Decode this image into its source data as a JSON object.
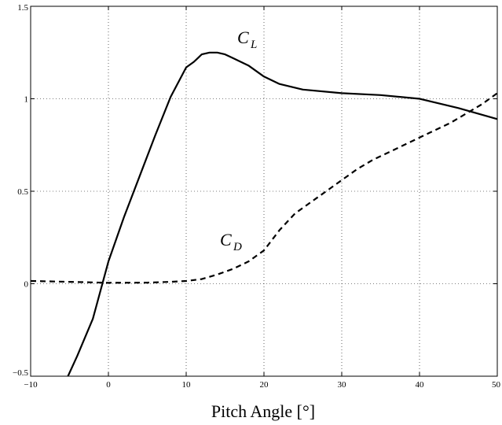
{
  "chart_data": {
    "type": "line",
    "title": "",
    "xlabel": "Pitch Angle [°]",
    "ylabel": "",
    "xlim": [
      -10,
      50
    ],
    "ylim": [
      -0.5,
      1.5
    ],
    "xticks": [
      "−10",
      "0",
      "10",
      "20",
      "30",
      "40",
      "50"
    ],
    "yticks": [
      "−0.5",
      "0",
      "0.5",
      "1",
      "1.5"
    ],
    "grid": true,
    "series": [
      {
        "name": "C_L",
        "label_main": "C",
        "label_sub": "L",
        "style": "solid",
        "x": [
          -5.2,
          -4,
          -2,
          0,
          2,
          4,
          6,
          8,
          10,
          11,
          12,
          13,
          14,
          15,
          16,
          18,
          20,
          22,
          25,
          30,
          35,
          40,
          45,
          50
        ],
        "y": [
          -0.5,
          -0.39,
          -0.19,
          0.12,
          0.36,
          0.58,
          0.8,
          1.01,
          1.17,
          1.2,
          1.24,
          1.25,
          1.25,
          1.24,
          1.22,
          1.18,
          1.12,
          1.08,
          1.05,
          1.03,
          1.02,
          1.0,
          0.95,
          0.89
        ]
      },
      {
        "name": "C_D",
        "label_main": "C",
        "label_sub": "D",
        "style": "dashed",
        "x": [
          -10,
          -5,
          0,
          5,
          8,
          10,
          12,
          14,
          16,
          18,
          20,
          22,
          24,
          26,
          28,
          30,
          32,
          34,
          36,
          38,
          40,
          42,
          44,
          46,
          48,
          50
        ],
        "y": [
          0.015,
          0.01,
          0.005,
          0.006,
          0.01,
          0.015,
          0.025,
          0.05,
          0.08,
          0.12,
          0.18,
          0.29,
          0.38,
          0.44,
          0.5,
          0.56,
          0.62,
          0.67,
          0.71,
          0.75,
          0.79,
          0.83,
          0.87,
          0.92,
          0.97,
          1.03
        ]
      }
    ]
  }
}
